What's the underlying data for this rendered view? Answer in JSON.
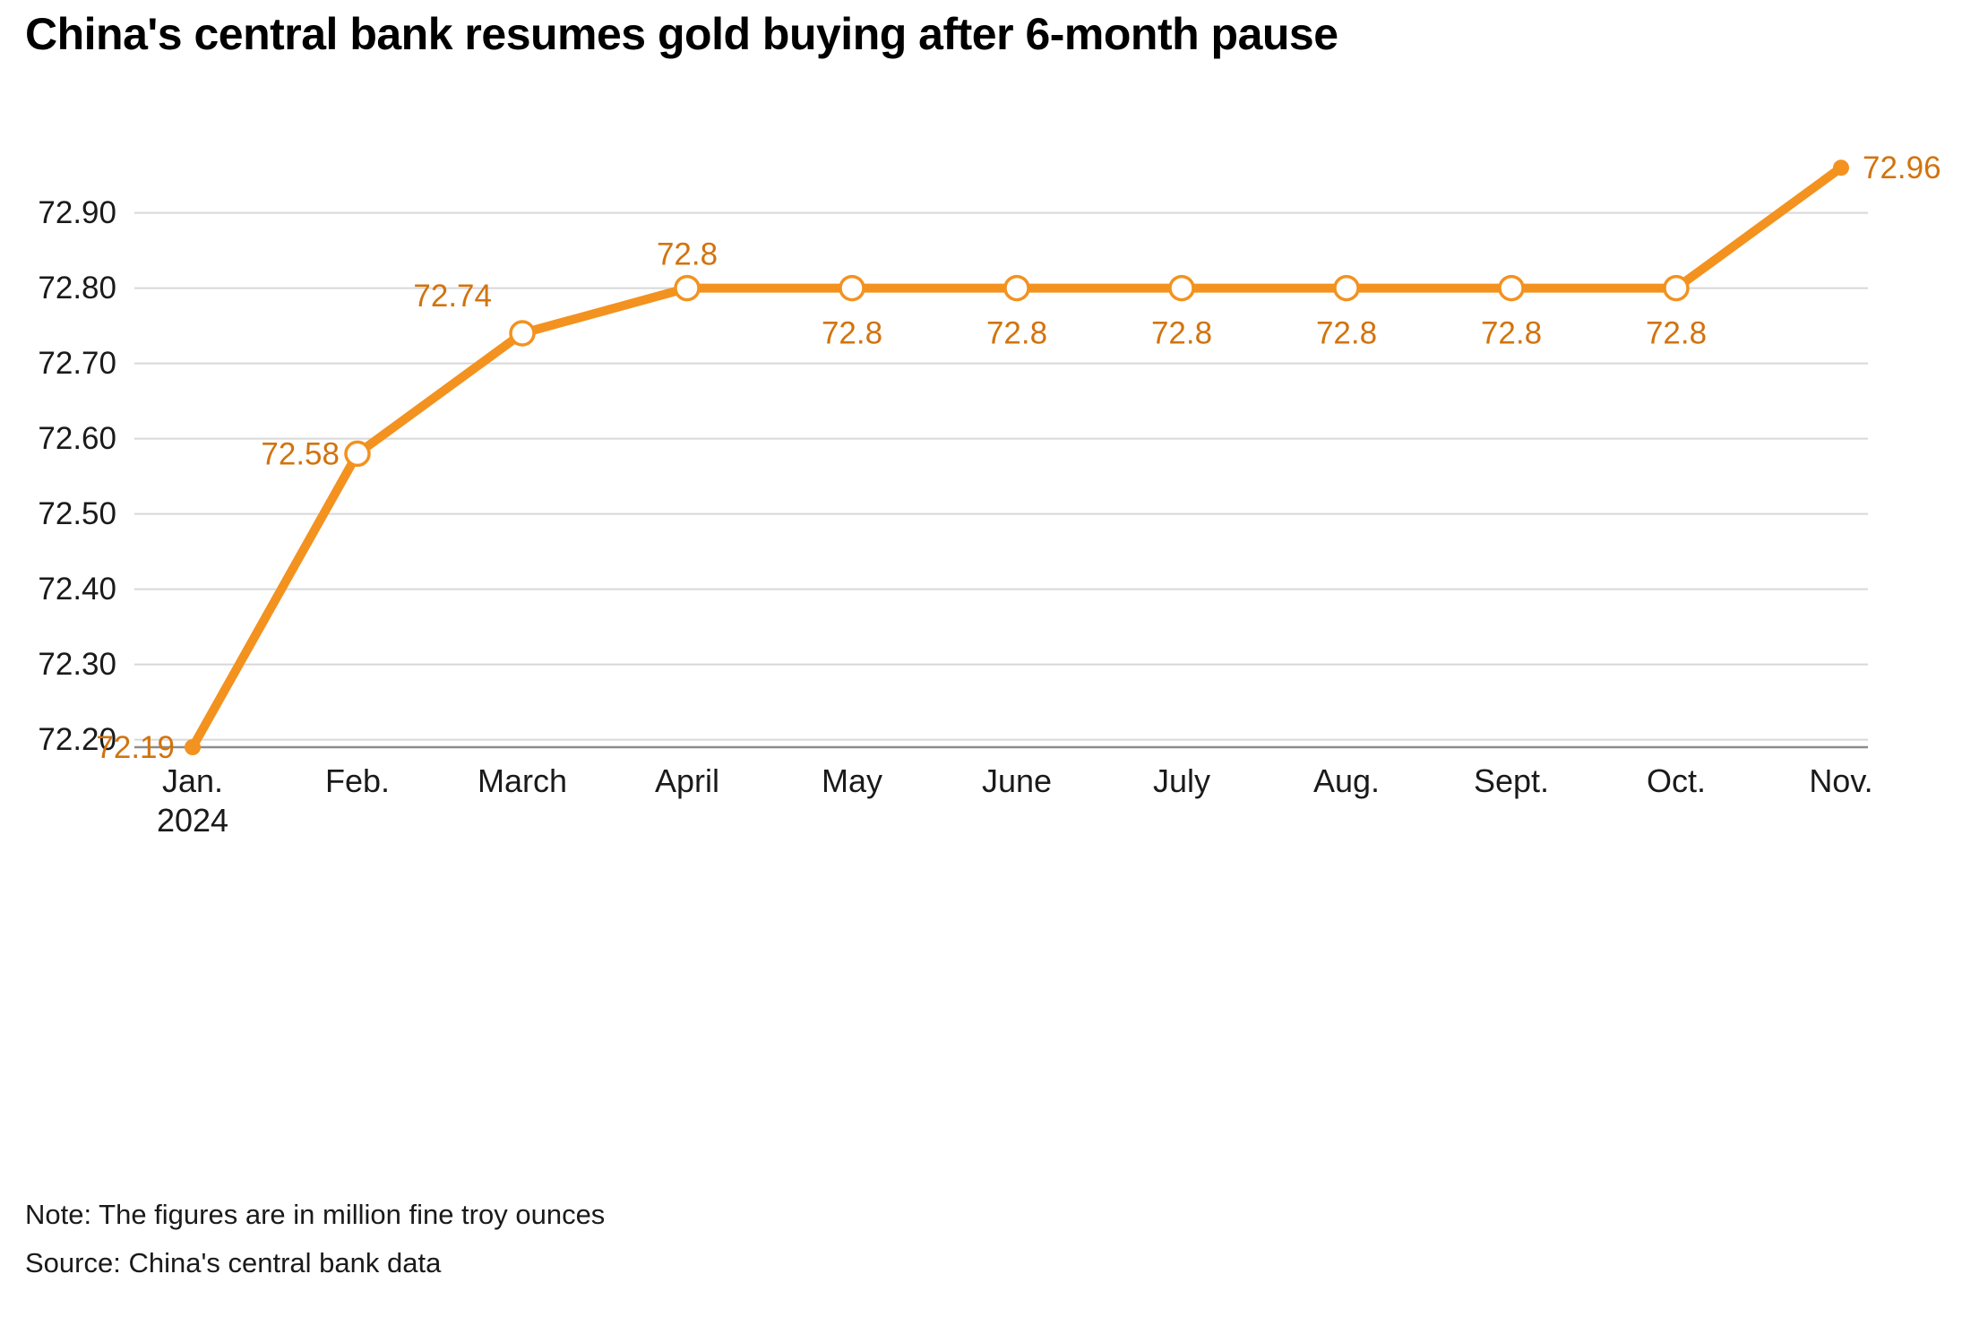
{
  "title": "China's central bank resumes gold buying after 6-month pause",
  "note": "Note: The figures are in million fine troy ounces",
  "source": "Source: China's central bank data",
  "chart_data": {
    "type": "line",
    "title": "China's central bank resumes gold buying after 6-month pause",
    "xlabel": "",
    "ylabel": "",
    "categories": [
      "Jan. 2024",
      "Feb.",
      "March",
      "April",
      "May",
      "June",
      "July",
      "Aug.",
      "Sept.",
      "Oct.",
      "Nov."
    ],
    "category_label_lines": [
      [
        "Jan.",
        "2024"
      ],
      [
        "Feb."
      ],
      [
        "March"
      ],
      [
        "April"
      ],
      [
        "May"
      ],
      [
        "June"
      ],
      [
        "July"
      ],
      [
        "Aug."
      ],
      [
        "Sept."
      ],
      [
        "Oct."
      ],
      [
        "Nov."
      ]
    ],
    "values": [
      72.19,
      72.58,
      72.74,
      72.8,
      72.8,
      72.8,
      72.8,
      72.8,
      72.8,
      72.8,
      72.96
    ],
    "point_labels": [
      "72.19",
      "72.58",
      "72.74",
      "72.8",
      "72.8",
      "72.8",
      "72.8",
      "72.8",
      "72.8",
      "72.8",
      "72.96"
    ],
    "point_label_positions": [
      "left",
      "left",
      "above-left",
      "above",
      "below",
      "below",
      "below",
      "below",
      "below",
      "below",
      "right"
    ],
    "markers": [
      "dot",
      "open",
      "open",
      "open",
      "open",
      "open",
      "open",
      "open",
      "open",
      "open",
      "dot"
    ],
    "ytick_labels": [
      "72.20",
      "72.30",
      "72.40",
      "72.50",
      "72.60",
      "72.70",
      "72.80",
      "72.90"
    ],
    "yticks": [
      72.2,
      72.3,
      72.4,
      72.5,
      72.6,
      72.7,
      72.8,
      72.9
    ],
    "ylim": [
      72.19,
      73.02
    ],
    "grid": true,
    "legend_position": "none",
    "colors": {
      "line": "#F3921F",
      "point_label": "#D2730E",
      "grid": "#D8D8D8",
      "axis": "#8C8C8C",
      "text": "#1A1A1A"
    },
    "note": "Note: The figures are in million fine troy ounces",
    "source": "Source: China's central bank data"
  }
}
